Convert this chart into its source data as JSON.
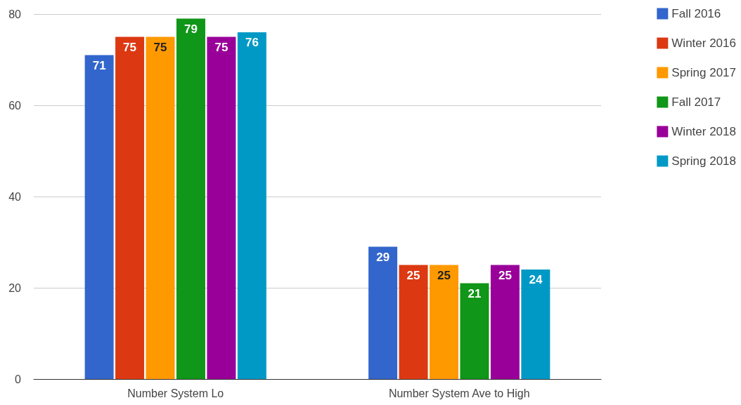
{
  "chart_data": {
    "type": "bar",
    "categories": [
      "Number System Lo",
      "Number System Ave to High"
    ],
    "series": [
      {
        "name": "Fall 2016",
        "color": "#3366cc",
        "values": [
          71,
          29
        ]
      },
      {
        "name": "Winter 2016",
        "color": "#dc3912",
        "values": [
          75,
          25
        ]
      },
      {
        "name": "Spring 2017",
        "color": "#ff9900",
        "values": [
          75,
          25
        ]
      },
      {
        "name": "Fall 2017",
        "color": "#109618",
        "values": [
          79,
          21
        ]
      },
      {
        "name": "Winter 2018",
        "color": "#990099",
        "values": [
          75,
          25
        ]
      },
      {
        "name": "Spring 2018",
        "color": "#0099c6",
        "values": [
          76,
          24
        ]
      }
    ],
    "ylim": [
      0,
      80
    ],
    "yticks": [
      0,
      20,
      40,
      60,
      80
    ],
    "grid": "y",
    "legend": "top right",
    "data_labels": true
  }
}
